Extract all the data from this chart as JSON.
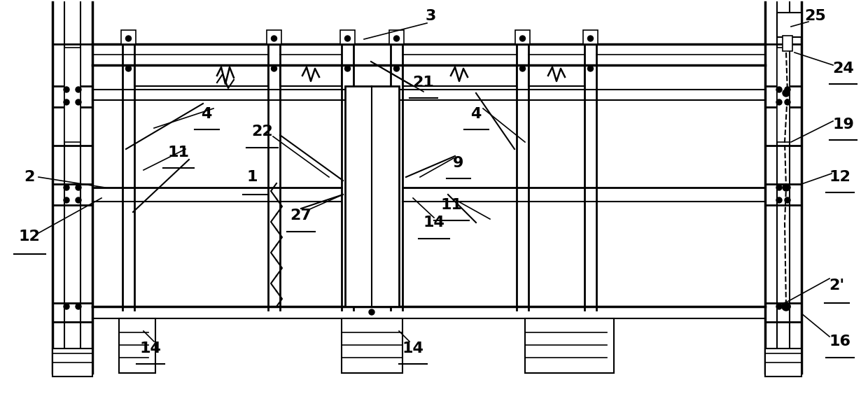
{
  "bg_color": "#ffffff",
  "lc": "#000000",
  "fig_width": 12.4,
  "fig_height": 5.63
}
